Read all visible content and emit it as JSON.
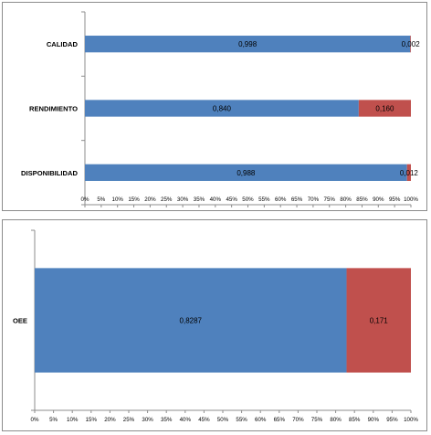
{
  "chart_data": [
    {
      "type": "bar",
      "orientation": "horizontal",
      "stacked": "percent",
      "categories": [
        "CALIDAD",
        "RENDIMIENTO",
        "DISPONIBILIDAD"
      ],
      "series": [
        {
          "values": [
            0.998,
            0.84,
            0.988
          ],
          "labels": [
            "0,998",
            "0,840",
            "0,988"
          ],
          "color": "#4f81bd"
        },
        {
          "values": [
            0.002,
            0.16,
            0.012
          ],
          "labels": [
            "0,002",
            "0,160",
            "0,012"
          ],
          "color": "#c0504d"
        }
      ],
      "xlim": [
        0,
        100
      ],
      "xticks": [
        "0%",
        "5%",
        "10%",
        "15%",
        "20%",
        "25%",
        "30%",
        "35%",
        "40%",
        "45%",
        "50%",
        "55%",
        "60%",
        "65%",
        "70%",
        "75%",
        "80%",
        "85%",
        "90%",
        "95%",
        "100%"
      ],
      "legend": "none",
      "grid": false
    },
    {
      "type": "bar",
      "orientation": "horizontal",
      "stacked": "percent",
      "categories": [
        "OEE"
      ],
      "series": [
        {
          "values": [
            0.8287
          ],
          "labels": [
            "0,8287"
          ],
          "color": "#4f81bd"
        },
        {
          "values": [
            0.171
          ],
          "labels": [
            "0,171"
          ],
          "color": "#c0504d"
        }
      ],
      "xlim": [
        0,
        100
      ],
      "xticks": [
        "0%",
        "5%",
        "10%",
        "15%",
        "20%",
        "25%",
        "30%",
        "35%",
        "40%",
        "45%",
        "50%",
        "55%",
        "60%",
        "65%",
        "70%",
        "75%",
        "80%",
        "85%",
        "90%",
        "95%",
        "100%"
      ],
      "legend": "none",
      "grid": false
    }
  ]
}
